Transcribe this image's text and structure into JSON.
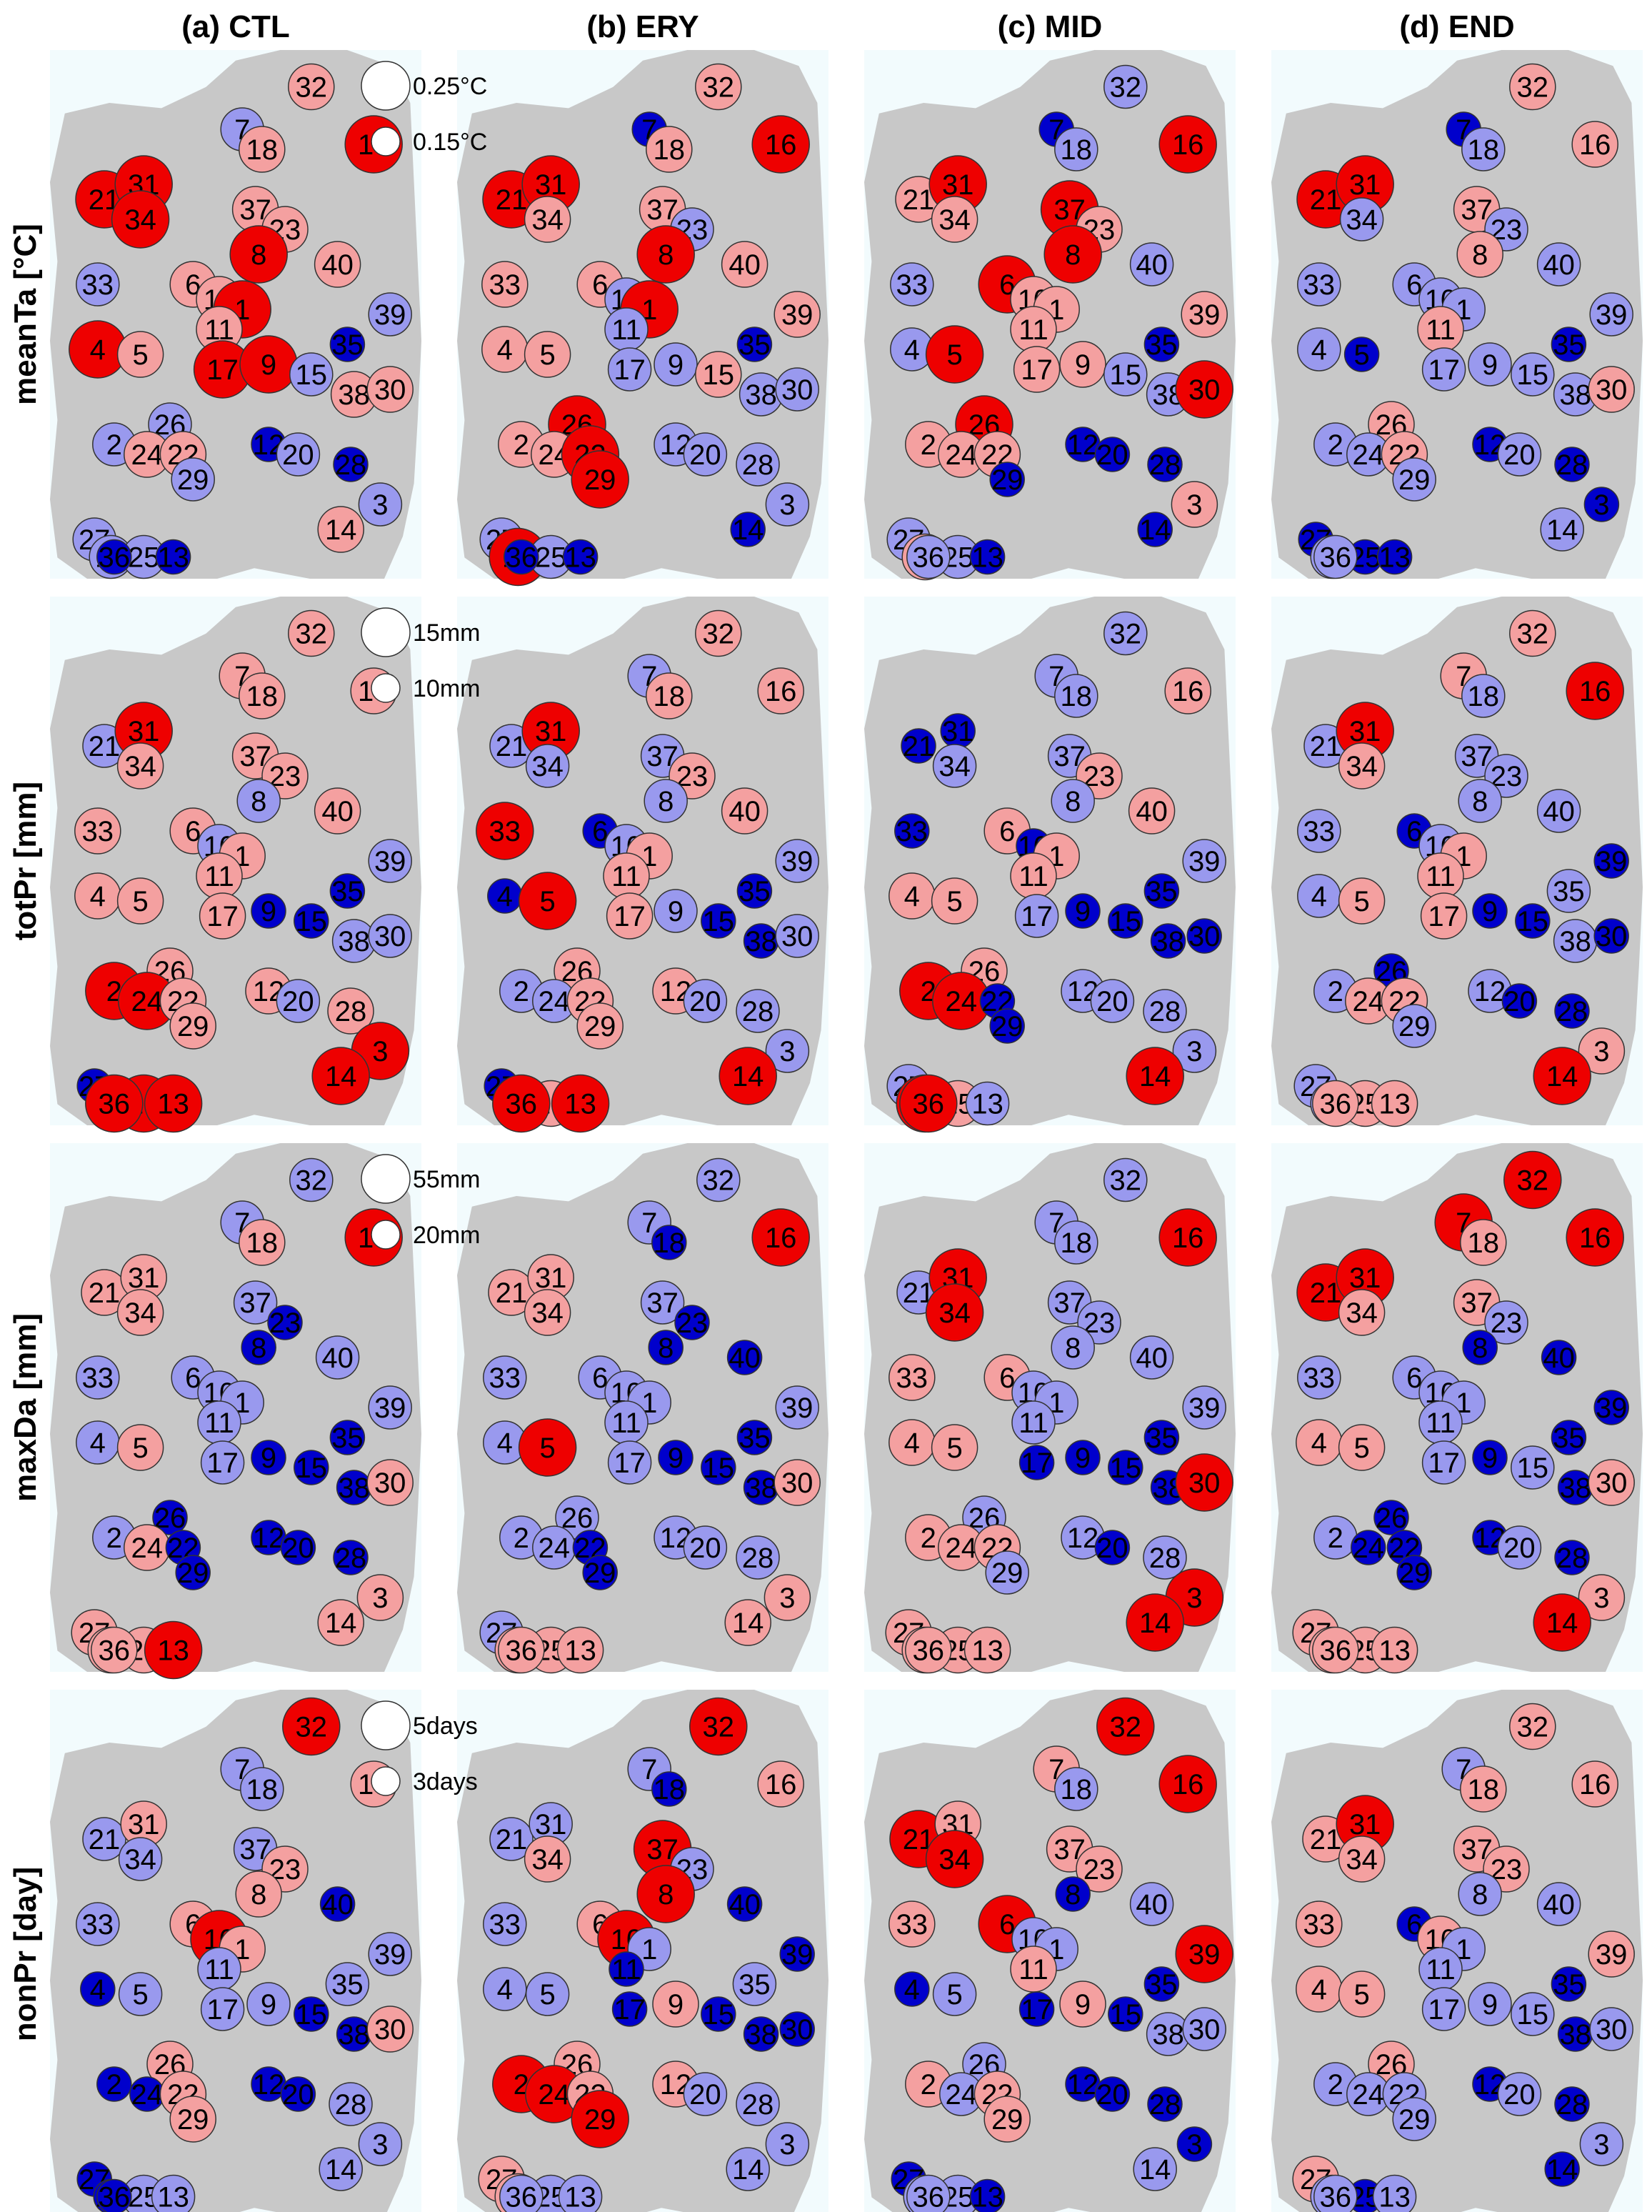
{
  "columns": [
    {
      "key": "CTL",
      "title": "(a) CTL"
    },
    {
      "key": "ERY",
      "title": "(b) ERY"
    },
    {
      "key": "MID",
      "title": "(c) MID"
    },
    {
      "key": "END",
      "title": "(d) END"
    }
  ],
  "rows": [
    {
      "key": "meanTa",
      "title": "meanTa [°C]",
      "legend": [
        "0.25°C",
        "0.15°C"
      ]
    },
    {
      "key": "totPr",
      "title": "totPr [mm]",
      "legend": [
        "15mm",
        "10mm"
      ]
    },
    {
      "key": "maxDa",
      "title": "maxDa [mm]",
      "legend": [
        "55mm",
        "20mm"
      ]
    },
    {
      "key": "nonPr",
      "title": "nonPr [day]",
      "legend": [
        "5days",
        "3days"
      ]
    }
  ],
  "colors": {
    "large_positive": "#ee0000",
    "small_positive": "#f4a0a0",
    "small_negative": "#9999ee",
    "large_negative": "#0000cc",
    "land": "#c8c8c8",
    "sea": "#f2fbfd"
  },
  "color_key": [
    "large-positive",
    "small-positive",
    "small-negative",
    "large-negative"
  ],
  "station_ids": [
    "32",
    "16",
    "7",
    "18",
    "21",
    "31",
    "34",
    "37",
    "23",
    "8",
    "40",
    "33",
    "6",
    "10",
    "1",
    "11",
    "39",
    "4",
    "5",
    "17",
    "9",
    "15",
    "35",
    "38",
    "30",
    "26",
    "2",
    "24",
    "22",
    "29",
    "12",
    "20",
    "28",
    "3",
    "14",
    "27",
    "19",
    "25",
    "13",
    "36"
  ],
  "map_values": {
    "note_codes": "R=large positive (red), r=small positive (pink), b=small negative (light blue), B=large negative (blue)",
    "meanTa": {
      "CTL": [
        "r",
        "R",
        "b",
        "r",
        "R",
        "R",
        "R",
        "r",
        "r",
        "R",
        "r",
        "b",
        "r",
        "r",
        "R",
        "r",
        "b",
        "R",
        "r",
        "R",
        "R",
        "b",
        "B",
        "r",
        "r",
        "b",
        "b",
        "r",
        "r",
        "b",
        "B",
        "b",
        "B",
        "b",
        "r",
        "b",
        "b",
        "b",
        "B",
        "B"
      ],
      "ERY": [
        "r",
        "R",
        "B",
        "r",
        "R",
        "R",
        "r",
        "r",
        "b",
        "R",
        "r",
        "r",
        "r",
        "b",
        "R",
        "b",
        "r",
        "r",
        "r",
        "b",
        "b",
        "r",
        "B",
        "b",
        "b",
        "R",
        "r",
        "r",
        "R",
        "R",
        "b",
        "b",
        "b",
        "b",
        "B",
        "b",
        "R",
        "b",
        "B",
        "B"
      ],
      "MID": [
        "b",
        "R",
        "B",
        "b",
        "r",
        "R",
        "r",
        "R",
        "r",
        "R",
        "b",
        "b",
        "R",
        "r",
        "r",
        "r",
        "r",
        "b",
        "R",
        "r",
        "r",
        "b",
        "B",
        "b",
        "R",
        "R",
        "r",
        "r",
        "r",
        "B",
        "B",
        "B",
        "B",
        "r",
        "B",
        "b",
        "r",
        "b",
        "B",
        "b"
      ],
      "END": [
        "r",
        "r",
        "B",
        "b",
        "R",
        "R",
        "b",
        "r",
        "b",
        "r",
        "b",
        "b",
        "b",
        "b",
        "b",
        "r",
        "b",
        "b",
        "B",
        "b",
        "b",
        "b",
        "B",
        "b",
        "r",
        "r",
        "b",
        "b",
        "r",
        "b",
        "B",
        "b",
        "B",
        "B",
        "b",
        "B",
        "b",
        "B",
        "B",
        "b"
      ]
    },
    "totPr": {
      "CTL": [
        "r",
        "r",
        "r",
        "r",
        "b",
        "R",
        "r",
        "r",
        "r",
        "b",
        "r",
        "r",
        "r",
        "b",
        "r",
        "r",
        "b",
        "r",
        "r",
        "r",
        "B",
        "B",
        "B",
        "b",
        "b",
        "r",
        "R",
        "R",
        "r",
        "r",
        "r",
        "b",
        "r",
        "R",
        "R",
        "B",
        "r",
        "R",
        "R",
        "R"
      ],
      "ERY": [
        "r",
        "r",
        "b",
        "r",
        "b",
        "R",
        "b",
        "b",
        "r",
        "b",
        "r",
        "R",
        "B",
        "b",
        "r",
        "r",
        "b",
        "B",
        "R",
        "r",
        "b",
        "B",
        "B",
        "B",
        "b",
        "r",
        "b",
        "b",
        "r",
        "r",
        "r",
        "b",
        "b",
        "b",
        "R",
        "B",
        "r",
        "r",
        "R",
        "R"
      ],
      "MID": [
        "b",
        "r",
        "b",
        "b",
        "B",
        "B",
        "b",
        "b",
        "r",
        "b",
        "r",
        "B",
        "r",
        "B",
        "r",
        "r",
        "b",
        "r",
        "r",
        "b",
        "B",
        "B",
        "B",
        "B",
        "B",
        "r",
        "R",
        "R",
        "B",
        "B",
        "b",
        "b",
        "b",
        "b",
        "R",
        "b",
        "R",
        "r",
        "b",
        "R"
      ],
      "END": [
        "r",
        "R",
        "r",
        "b",
        "b",
        "R",
        "r",
        "b",
        "b",
        "b",
        "b",
        "b",
        "B",
        "b",
        "r",
        "r",
        "B",
        "b",
        "r",
        "r",
        "B",
        "B",
        "b",
        "b",
        "B",
        "B",
        "b",
        "r",
        "r",
        "b",
        "b",
        "B",
        "B",
        "r",
        "R",
        "b",
        "b",
        "r",
        "r",
        "r"
      ]
    },
    "maxDa": {
      "CTL": [
        "b",
        "R",
        "b",
        "r",
        "r",
        "r",
        "r",
        "b",
        "B",
        "B",
        "b",
        "b",
        "b",
        "b",
        "b",
        "b",
        "b",
        "b",
        "r",
        "b",
        "B",
        "B",
        "B",
        "B",
        "r",
        "B",
        "b",
        "r",
        "B",
        "B",
        "B",
        "B",
        "B",
        "r",
        "r",
        "r",
        "r",
        "r",
        "R",
        "r"
      ],
      "ERY": [
        "b",
        "R",
        "b",
        "B",
        "r",
        "r",
        "r",
        "b",
        "B",
        "B",
        "B",
        "b",
        "b",
        "b",
        "b",
        "b",
        "b",
        "b",
        "R",
        "b",
        "B",
        "B",
        "B",
        "B",
        "r",
        "b",
        "b",
        "b",
        "B",
        "B",
        "b",
        "b",
        "b",
        "r",
        "r",
        "b",
        "r",
        "r",
        "r",
        "r"
      ],
      "MID": [
        "b",
        "R",
        "b",
        "b",
        "b",
        "R",
        "R",
        "b",
        "b",
        "b",
        "b",
        "r",
        "r",
        "b",
        "b",
        "b",
        "b",
        "r",
        "r",
        "B",
        "B",
        "B",
        "B",
        "B",
        "R",
        "b",
        "r",
        "r",
        "r",
        "b",
        "b",
        "B",
        "b",
        "R",
        "R",
        "r",
        "r",
        "r",
        "r",
        "r"
      ],
      "END": [
        "R",
        "R",
        "R",
        "r",
        "R",
        "R",
        "r",
        "r",
        "b",
        "B",
        "B",
        "b",
        "b",
        "b",
        "b",
        "b",
        "B",
        "r",
        "r",
        "b",
        "B",
        "b",
        "B",
        "B",
        "r",
        "B",
        "b",
        "B",
        "B",
        "B",
        "B",
        "b",
        "B",
        "r",
        "R",
        "r",
        "r",
        "r",
        "r",
        "r"
      ]
    },
    "nonPr": {
      "CTL": [
        "R",
        "r",
        "b",
        "b",
        "b",
        "r",
        "b",
        "b",
        "r",
        "r",
        "B",
        "b",
        "r",
        "R",
        "r",
        "b",
        "b",
        "B",
        "b",
        "b",
        "b",
        "B",
        "b",
        "B",
        "r",
        "r",
        "B",
        "B",
        "r",
        "r",
        "B",
        "B",
        "b",
        "b",
        "b",
        "B",
        "B",
        "b",
        "b",
        "B"
      ],
      "ERY": [
        "R",
        "r",
        "b",
        "B",
        "b",
        "b",
        "r",
        "R",
        "b",
        "R",
        "B",
        "b",
        "r",
        "R",
        "b",
        "B",
        "B",
        "b",
        "b",
        "B",
        "r",
        "B",
        "b",
        "B",
        "B",
        "r",
        "R",
        "R",
        "r",
        "R",
        "r",
        "b",
        "b",
        "b",
        "b",
        "r",
        "r",
        "b",
        "b",
        "b"
      ],
      "MID": [
        "R",
        "R",
        "r",
        "b",
        "R",
        "r",
        "R",
        "r",
        "r",
        "B",
        "b",
        "r",
        "R",
        "b",
        "b",
        "r",
        "R",
        "B",
        "b",
        "B",
        "r",
        "B",
        "B",
        "b",
        "b",
        "b",
        "r",
        "b",
        "r",
        "r",
        "B",
        "B",
        "B",
        "B",
        "b",
        "B",
        "b",
        "b",
        "B",
        "b"
      ],
      "END": [
        "r",
        "r",
        "b",
        "r",
        "r",
        "R",
        "r",
        "r",
        "r",
        "b",
        "b",
        "r",
        "B",
        "r",
        "b",
        "b",
        "r",
        "r",
        "r",
        "b",
        "b",
        "b",
        "B",
        "B",
        "b",
        "r",
        "b",
        "b",
        "b",
        "b",
        "B",
        "b",
        "B",
        "b",
        "B",
        "r",
        "b",
        "B",
        "b",
        "b"
      ]
    }
  }
}
